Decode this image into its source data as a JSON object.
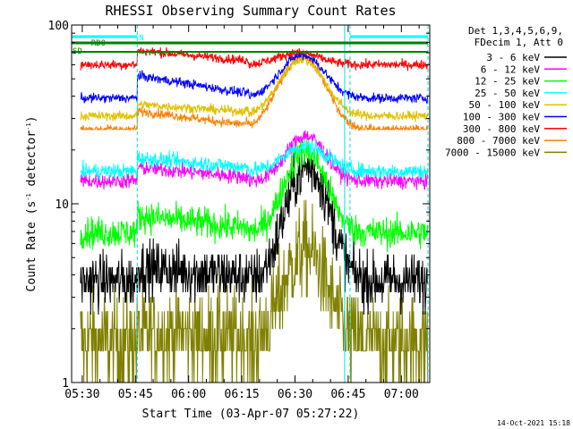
{
  "chart_data": {
    "type": "line",
    "title": "RHESSI Observing Summary Count Rates",
    "xlabel": "Start Time (03-Apr-07 05:27:22)",
    "ylabel": "Count Rate (s⁻¹ detector⁻¹)",
    "ylabel_parts": {
      "main": "Count Rate (s",
      "sup1": "-1",
      "mid": " detector",
      "sup2": "-1",
      "end": ")"
    },
    "yscale": "log",
    "ylim": [
      1,
      100
    ],
    "xlim_minutes": [
      -3,
      98
    ],
    "x_ticks": [
      {
        "label": "05:30",
        "min": 0
      },
      {
        "label": "05:45",
        "min": 15
      },
      {
        "label": "06:00",
        "min": 30
      },
      {
        "label": "06:15",
        "min": 45
      },
      {
        "label": "06:30",
        "min": 60
      },
      {
        "label": "06:45",
        "min": 75
      },
      {
        "label": "07:00",
        "min": 90
      }
    ],
    "y_ticks": [
      {
        "label": "1",
        "value": 1
      },
      {
        "label": "10",
        "value": 10
      },
      {
        "label": "100",
        "value": 100
      }
    ],
    "legend_header": [
      "Det 1,3,4,5,6,9,",
      "FDecim 1, Att 0"
    ],
    "legend_position": "right",
    "series": [
      {
        "name": "3 - 6 keV",
        "color": "#000000",
        "base": 3.7,
        "peak": 16,
        "pre": 4.4,
        "pmin": 63.5,
        "width": 7,
        "ylo": 1.0,
        "noise": 0.18,
        "quant": true
      },
      {
        "name": "6 - 12 keV",
        "color": "#ff00ff",
        "base": 13.4,
        "peak": 24,
        "pre": 16,
        "pmin": 63,
        "width": 7,
        "ylo": 1.0,
        "noise": 0.05
      },
      {
        "name": "12 - 25 keV",
        "color": "#00ff00",
        "base": 6.9,
        "peak": 19.5,
        "pre": 8.6,
        "pmin": 63,
        "width": 7,
        "ylo": 1.0,
        "noise": 0.1
      },
      {
        "name": "25 - 50 keV",
        "color": "#00ffff",
        "base": 15.2,
        "peak": 21,
        "pre": 18,
        "pmin": 63,
        "width": 8,
        "ylo": 1.0,
        "noise": 0.05
      },
      {
        "name": "50 - 100 keV",
        "color": "#e0c000",
        "base": 31,
        "peak": 64,
        "pre": 36,
        "pmin": 62,
        "width": 8,
        "ylo": 26,
        "noise": 0.03
      },
      {
        "name": "100 - 300 keV",
        "color": "#0000ff",
        "base": 39,
        "peak": 68,
        "pre": 52,
        "pmin": 62,
        "width": 8,
        "ylo": 26,
        "noise": 0.03
      },
      {
        "name": "300 - 800 keV",
        "color": "#ff0000",
        "base": 60,
        "peak": 70,
        "pre": 72,
        "pmin": 61,
        "width": 8,
        "ylo": 26,
        "noise": 0.03
      },
      {
        "name": "800 - 7000 keV",
        "color": "#ff8000",
        "base": 26,
        "peak": 66,
        "pre": 33,
        "pmin": 62,
        "width": 8,
        "ylo": 26,
        "noise": 0.03
      },
      {
        "name": "7000 - 15000 keV",
        "color": "#808000",
        "base": 1.7,
        "peak": 5.5,
        "pre": 1.9,
        "pmin": 63,
        "width": 7,
        "ylo": 1.0,
        "noise": 0.3,
        "quant": true
      }
    ],
    "annotations": {
      "bands": [
        {
          "label": "RD0",
          "color": "#008000"
        },
        {
          "label": "SD",
          "color": "#008000"
        },
        {
          "label": "N",
          "color": "#00ffff"
        }
      ],
      "night_boundaries_minutes": [
        15.5,
        75.5,
        97.5
      ]
    }
  },
  "footer": {
    "timestamp": "14-Oct-2021 15:18"
  }
}
